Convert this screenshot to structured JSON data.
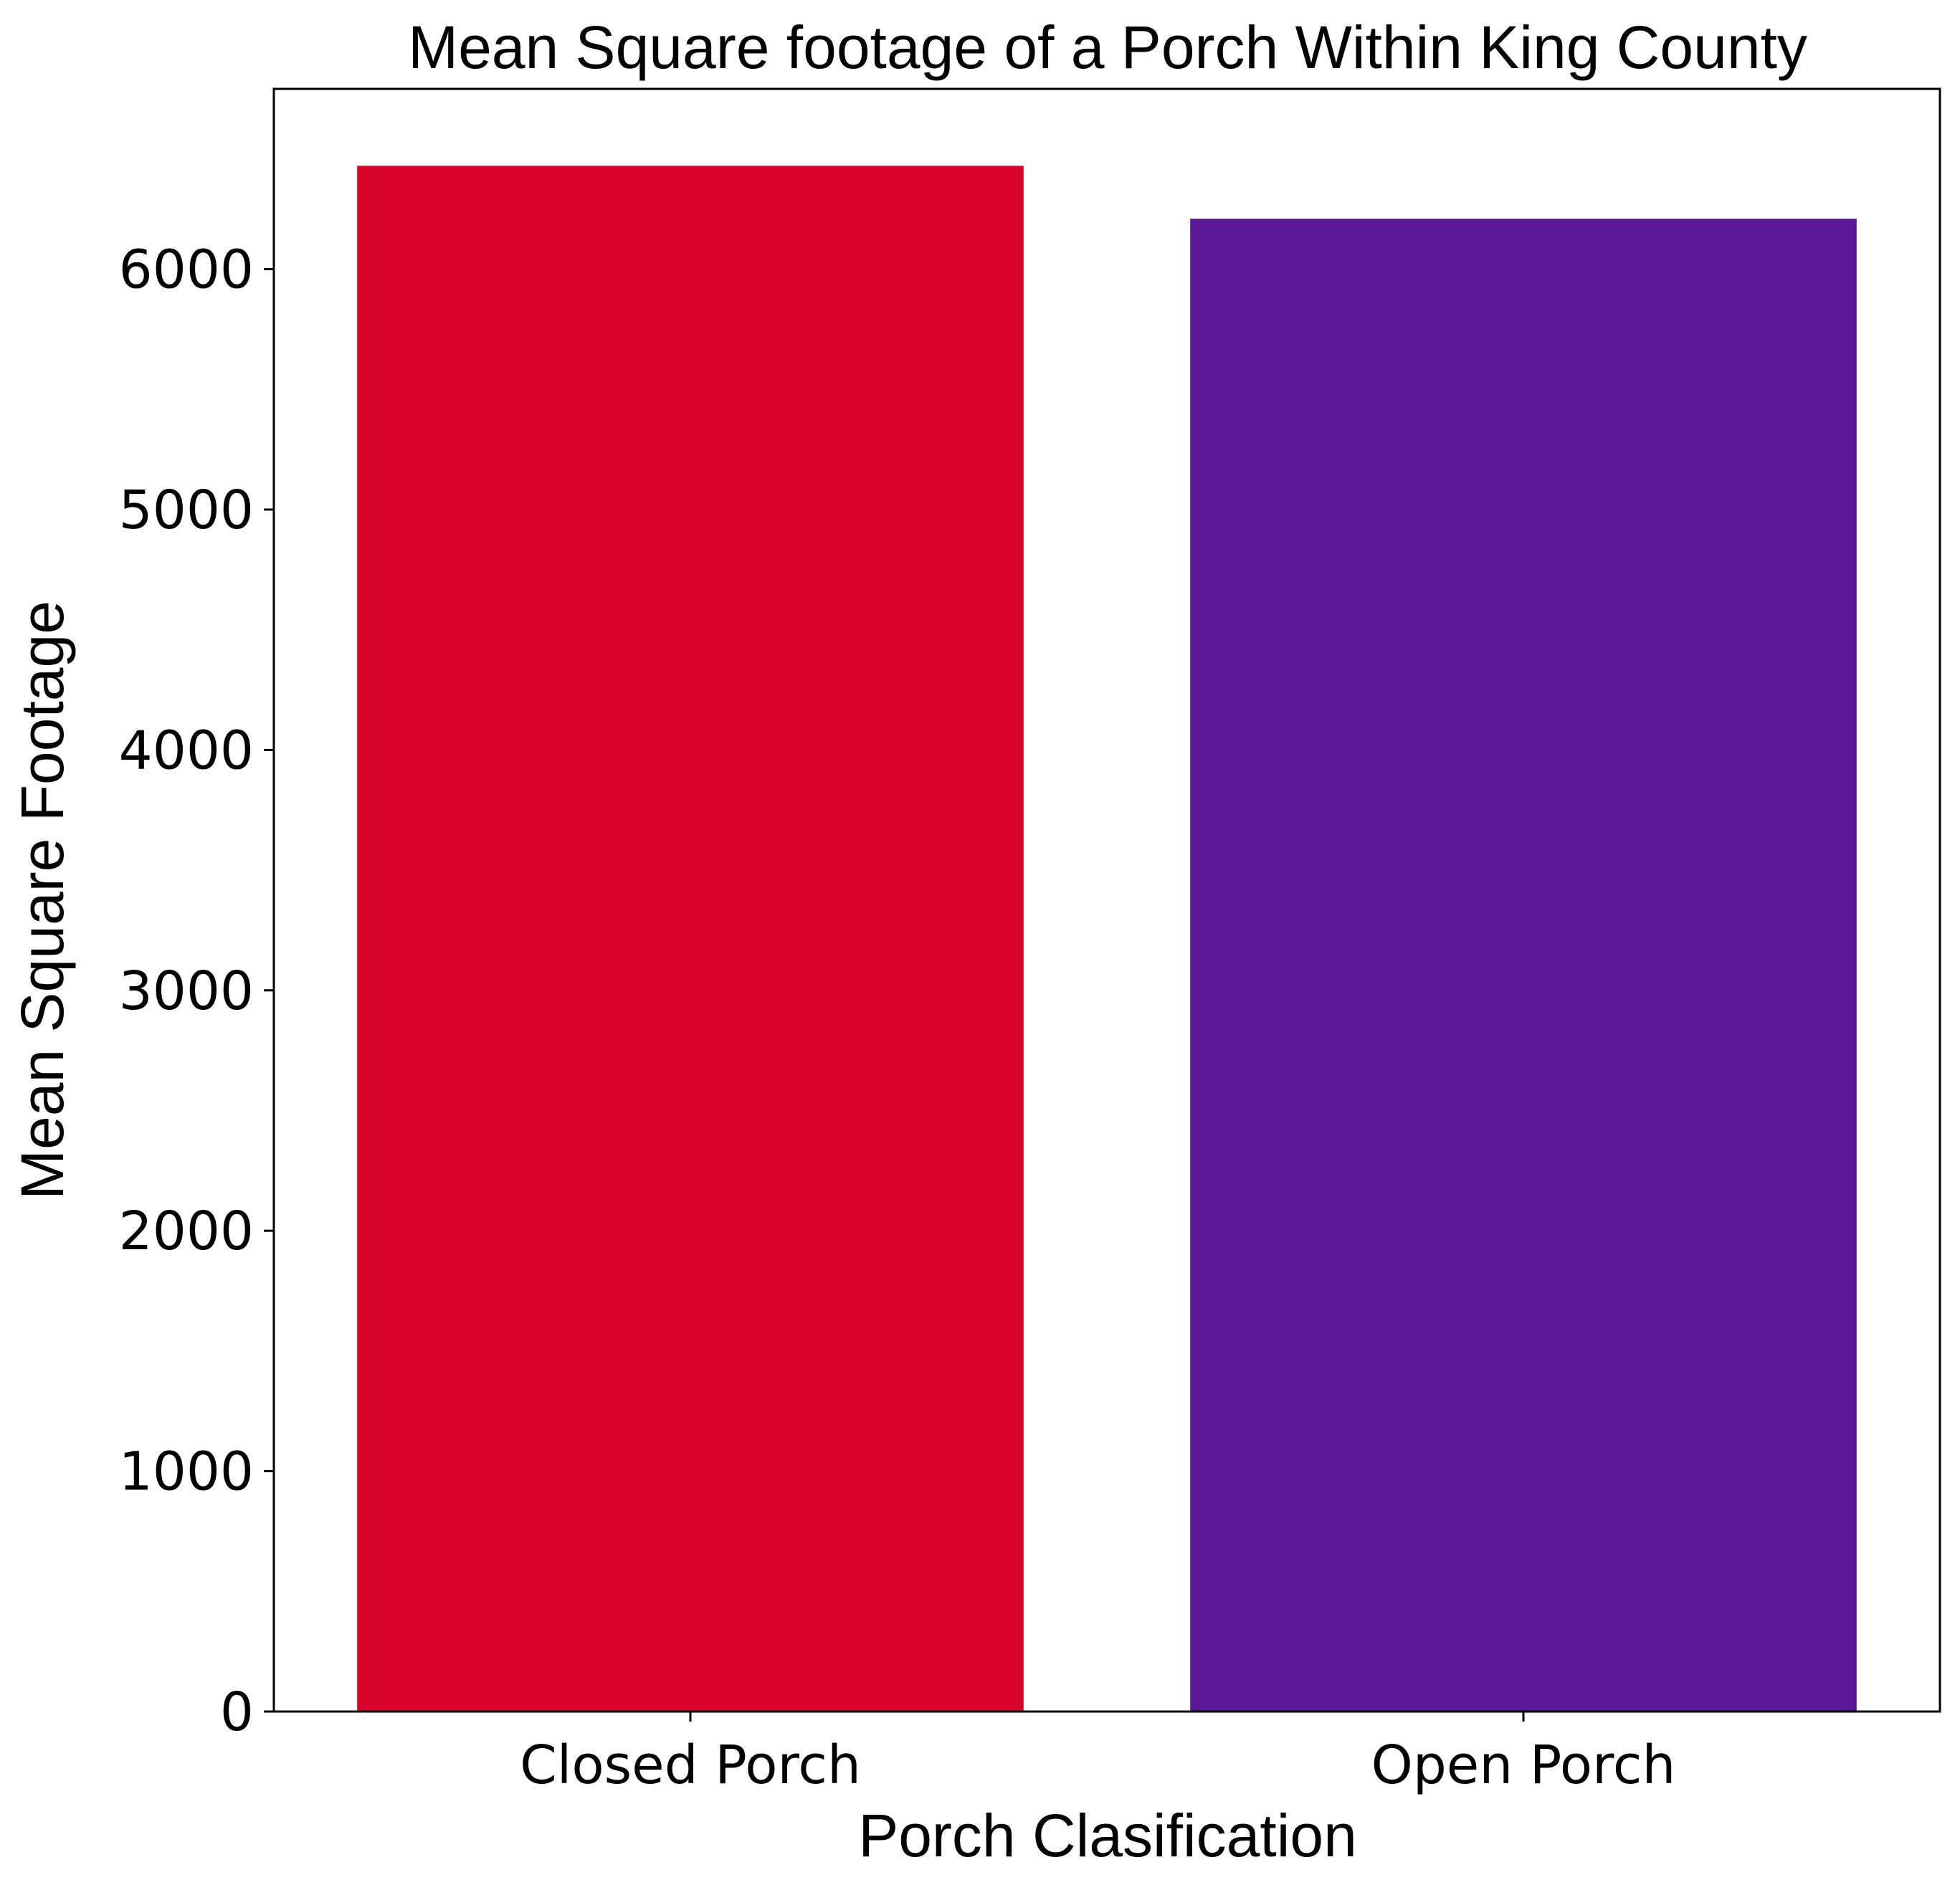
{
  "chart_data": {
    "type": "bar",
    "title": "Mean Square footage of a Porch Within King County",
    "xlabel": "Porch Clasification",
    "ylabel": "Mean Square Footage",
    "categories": [
      "Closed Porch",
      "Open Porch"
    ],
    "values": [
      6430,
      6210
    ],
    "colors": [
      "#d9042b",
      "#5a1896"
    ],
    "ylim": [
      0,
      6750
    ],
    "yticks": [
      0,
      1000,
      2000,
      3000,
      4000,
      5000,
      6000
    ],
    "grid": false,
    "legend": "none"
  }
}
